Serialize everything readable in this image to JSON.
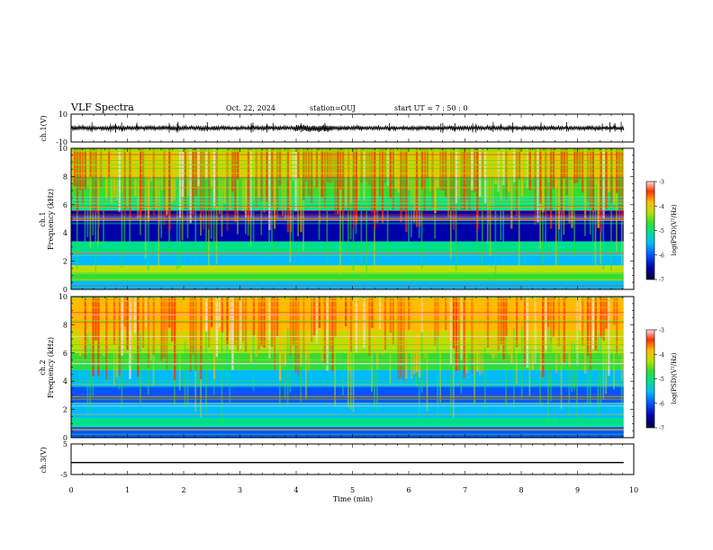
{
  "header": {
    "title": "VLF Spectra",
    "date": "Oct. 22, 2024",
    "station": "station=OUJ",
    "start": "start  UT =   7 : 50 : 0"
  },
  "chart_data": [
    {
      "type": "line",
      "panel": "ch1-waveform",
      "ylabel": "ch.1(V)",
      "ylim": [
        -10,
        10
      ],
      "y_ticks": [
        "10",
        "-10"
      ],
      "description_values": {
        "baseline_v": 0,
        "typical_amplitude_v": 1.5,
        "burst_time_min": 4.3,
        "burst_amplitude_v": 2.5
      }
    },
    {
      "type": "heatmap",
      "panel": "ch1-spectrogram",
      "ylabel": "Frequency (kHz)",
      "channel_label": "ch.1",
      "ylim": [
        0,
        10
      ],
      "y_ticks": [
        "0",
        "2",
        "4",
        "6",
        "8",
        "10"
      ],
      "xlim": [
        0,
        10
      ],
      "data_extent_min": 9.82,
      "colorbar": {
        "label": "log(PSD)(V²/Hz)",
        "range": [
          -7,
          -3
        ],
        "ticks": [
          "-3",
          "-4",
          "-5",
          "-6",
          "-7"
        ]
      },
      "bands_khz": [
        {
          "from": 0,
          "to": 0.6,
          "level": -5.8
        },
        {
          "from": 0.6,
          "to": 1.2,
          "level": -5.0
        },
        {
          "from": 1.2,
          "to": 1.7,
          "level": -4.6
        },
        {
          "from": 1.7,
          "to": 2.6,
          "level": -5.6
        },
        {
          "from": 2.6,
          "to": 3.4,
          "level": -5.3
        },
        {
          "from": 3.4,
          "to": 4.6,
          "level": -6.6
        },
        {
          "from": 4.6,
          "to": 5.6,
          "level": -6.3
        },
        {
          "from": 5.6,
          "to": 6.6,
          "level": -5.3
        },
        {
          "from": 6.6,
          "to": 8.0,
          "level": -4.9
        },
        {
          "from": 8.0,
          "to": 10.0,
          "level": -4.5
        }
      ]
    },
    {
      "type": "heatmap",
      "panel": "ch2-spectrogram",
      "ylabel": "Frequency (kHz)",
      "channel_label": "ch.2",
      "ylim": [
        0,
        10
      ],
      "y_ticks": [
        "0",
        "2",
        "4",
        "6",
        "8",
        "10"
      ],
      "xlim": [
        0,
        10
      ],
      "data_extent_min": 9.82,
      "colorbar": {
        "label": "log(PSD)(V²/Hz)",
        "range": [
          -7,
          -3
        ],
        "ticks": [
          "-3",
          "-4",
          "-5",
          "-6",
          "-7"
        ]
      },
      "bands_khz": [
        {
          "from": 0,
          "to": 0.8,
          "level": -5.9
        },
        {
          "from": 0.8,
          "to": 1.4,
          "level": -5.2
        },
        {
          "from": 1.4,
          "to": 2.4,
          "level": -5.5
        },
        {
          "from": 2.4,
          "to": 3.6,
          "level": -6.0
        },
        {
          "from": 3.6,
          "to": 4.8,
          "level": -5.7
        },
        {
          "from": 4.8,
          "to": 6.0,
          "level": -5.0
        },
        {
          "from": 6.0,
          "to": 7.6,
          "level": -4.6
        },
        {
          "from": 7.6,
          "to": 10.0,
          "level": -4.1
        }
      ]
    },
    {
      "type": "line",
      "panel": "ch3-waveform",
      "ylabel": "ch.3(V)",
      "ylim": [
        -5,
        5
      ],
      "y_ticks": [
        "5",
        "-5"
      ],
      "series": [
        {
          "x": [
            0,
            9.82
          ],
          "y": [
            -1.1,
            -1.1
          ]
        }
      ]
    }
  ],
  "x_axis": {
    "label": "Time (min)",
    "ticks": [
      "0",
      "1",
      "2",
      "3",
      "4",
      "5",
      "6",
      "7",
      "8",
      "9",
      "10"
    ],
    "range": [
      0,
      10
    ]
  },
  "colors": {
    "frame": "#000000",
    "waveform": "#000000",
    "colormap": [
      "#000033",
      "#0000aa",
      "#0055ff",
      "#00bbff",
      "#00e08a",
      "#33dd33",
      "#b8e000",
      "#ffbb00",
      "#ff3300",
      "#ffdddd"
    ]
  }
}
